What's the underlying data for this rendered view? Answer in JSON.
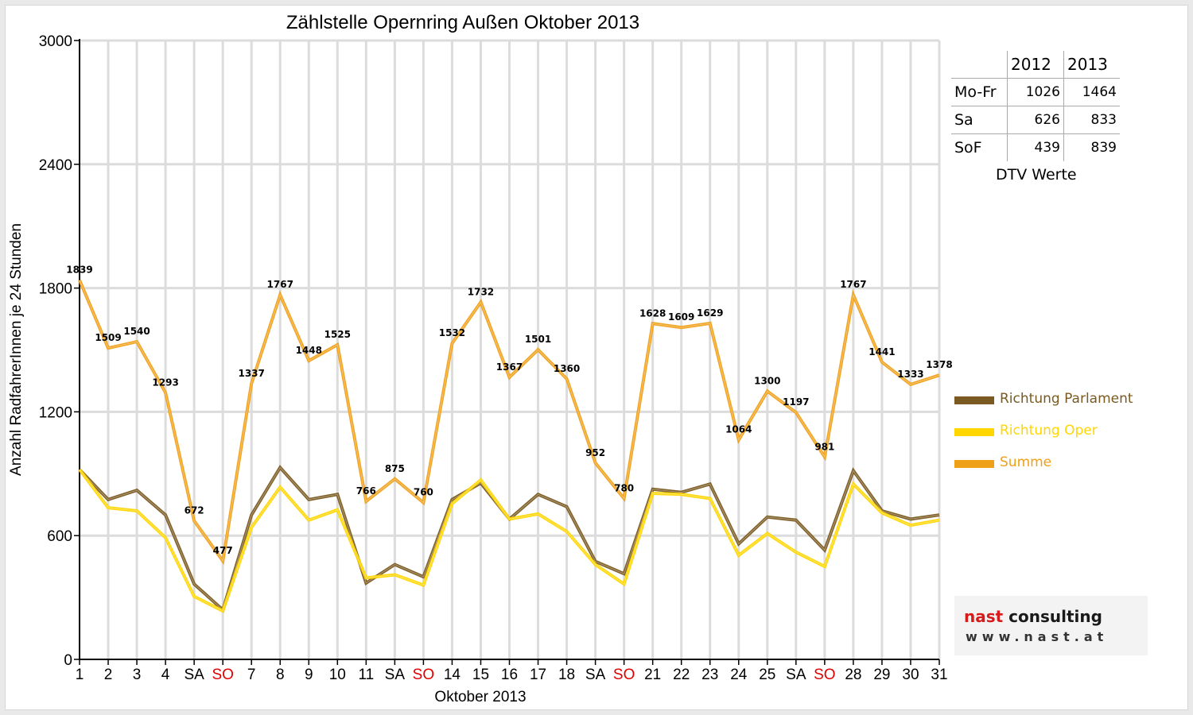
{
  "chart_data": {
    "type": "line",
    "title": "Zählstelle Opernring Außen Oktober 2013",
    "xlabel": "Oktober 2013",
    "ylabel": "Anzahl RadfahrerInnen je 24 Stunden",
    "ylim": [
      0,
      3000
    ],
    "yticks": [
      0,
      600,
      1200,
      1800,
      2400,
      3000
    ],
    "grid": true,
    "legend_position": "right",
    "categories": [
      "1",
      "2",
      "3",
      "4",
      "SA",
      "SO",
      "7",
      "8",
      "9",
      "10",
      "11",
      "SA",
      "SO",
      "14",
      "15",
      "16",
      "17",
      "18",
      "SA",
      "SO",
      "21",
      "22",
      "23",
      "24",
      "25",
      "SA",
      "SO",
      "28",
      "29",
      "30",
      "31"
    ],
    "category_colors": {
      "SO": "#e00000"
    },
    "series": [
      {
        "name": "Richtung Parlament",
        "color": "#7a5a20",
        "values": [
          920,
          775,
          820,
          700,
          365,
          240,
          700,
          930,
          775,
          800,
          370,
          460,
          400,
          775,
          855,
          680,
          800,
          740,
          475,
          415,
          825,
          810,
          850,
          560,
          690,
          675,
          530,
          915,
          720,
          680,
          700
        ]
      },
      {
        "name": "Richtung Oper",
        "color": "#ffd600",
        "values": [
          920,
          735,
          720,
          590,
          305,
          235,
          640,
          835,
          675,
          725,
          395,
          410,
          360,
          755,
          870,
          680,
          705,
          620,
          460,
          365,
          805,
          800,
          780,
          505,
          610,
          520,
          450,
          850,
          710,
          650,
          675
        ]
      },
      {
        "name": "Summe",
        "color": "#f0a018",
        "values": [
          1839,
          1509,
          1540,
          1293,
          672,
          477,
          1337,
          1767,
          1448,
          1525,
          766,
          875,
          760,
          1532,
          1732,
          1367,
          1501,
          1360,
          952,
          780,
          1628,
          1609,
          1629,
          1064,
          1300,
          1197,
          981,
          1767,
          1441,
          1333,
          1378
        ],
        "data_labels": true
      }
    ]
  },
  "dtv_table": {
    "columns": [
      "2012",
      "2013"
    ],
    "rows": [
      {
        "label": "Mo-Fr",
        "v2012": "1026",
        "v2013": "1464"
      },
      {
        "label": "Sa",
        "v2012": "626",
        "v2013": "833"
      },
      {
        "label": "SoF",
        "v2012": "439",
        "v2013": "839"
      }
    ],
    "caption": "DTV Werte"
  },
  "logo": {
    "brand_red": "nast",
    "brand_rest": " consulting",
    "url": "www.nast.at"
  }
}
